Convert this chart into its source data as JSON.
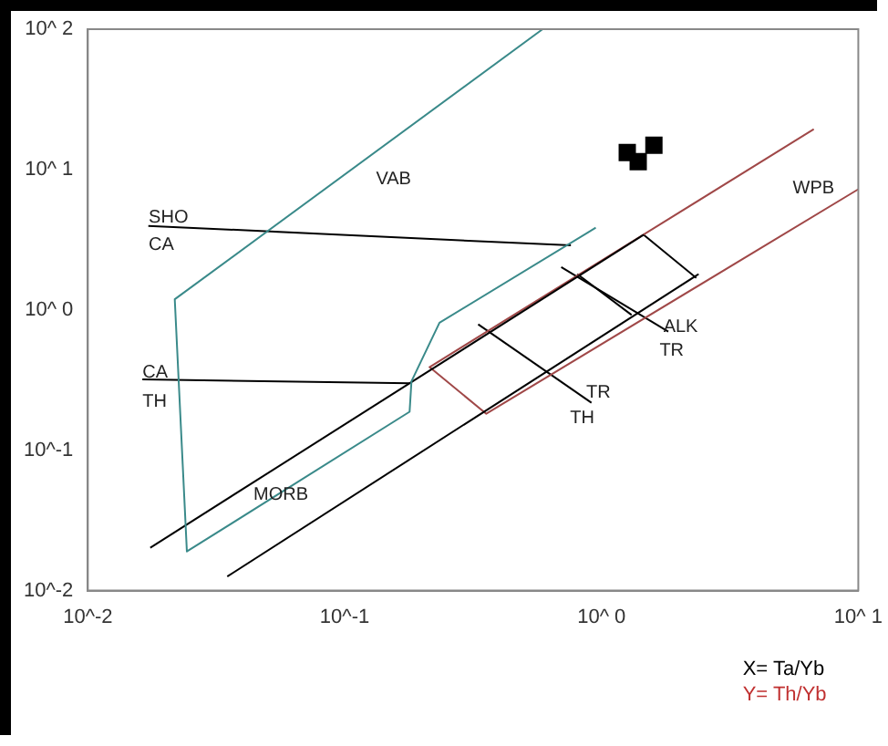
{
  "chart_data": {
    "type": "line",
    "log": "xy",
    "grid": false,
    "legend": false,
    "xlim": [
      0.01,
      10
    ],
    "ylim": [
      0.01,
      100
    ],
    "xticks": [
      {
        "value": 0.01,
        "label": "10^-2"
      },
      {
        "value": 0.1,
        "label": "10^-1"
      },
      {
        "value": 1,
        "label": "10^ 0"
      },
      {
        "value": 10,
        "label": "10^ 1"
      }
    ],
    "yticks": [
      {
        "value": 0.01,
        "label": "10^-2"
      },
      {
        "value": 0.1,
        "label": "10^-1"
      },
      {
        "value": 1,
        "label": "10^ 0"
      },
      {
        "value": 10,
        "label": "10^ 1"
      },
      {
        "value": 100,
        "label": "10^ 2"
      }
    ],
    "series": [
      {
        "color": "#3a8a8a",
        "x": [
          0.59,
          0.0218,
          0.0243,
          0.179,
          0.182,
          0.234,
          0.95
        ],
        "values": [
          100,
          1.19,
          0.019,
          0.188,
          0.31,
          0.81,
          3.85
        ]
      },
      {
        "color": "#000000",
        "x": [
          0.0172,
          0.76
        ],
        "values": [
          3.97,
          2.88
        ]
      },
      {
        "color": "#000000",
        "x": [
          0.0163,
          0.179
        ],
        "values": [
          0.32,
          0.3
        ]
      },
      {
        "color": "#000000",
        "x": [
          0.0175,
          1.46
        ],
        "values": [
          0.0202,
          3.43
        ]
      },
      {
        "color": "#000000",
        "x": [
          0.0349,
          2.39
        ],
        "values": [
          0.0126,
          1.8
        ]
      },
      {
        "color": "#a04848",
        "x": [
          6.71,
          0.214,
          0.356,
          10
        ],
        "values": [
          19.4,
          0.391,
          0.182,
          7.24
        ]
      },
      {
        "color": "#000000",
        "x": [
          1.46,
          2.34
        ],
        "values": [
          3.43,
          1.69
        ]
      },
      {
        "color": "#000000",
        "x": [
          0.805,
          1.31
        ],
        "values": [
          1.8,
          0.92
        ]
      },
      {
        "color": "#000000",
        "x": [
          0.697,
          1.82
        ],
        "values": [
          2.02,
          0.7
        ]
      },
      {
        "color": "#000000",
        "x": [
          0.331,
          0.914
        ],
        "values": [
          0.79,
          0.218
        ]
      },
      {
        "type": "scatter",
        "color": "#000000",
        "marker": "square",
        "x": [
          1.26,
          1.6,
          1.39
        ],
        "values": [
          13.2,
          14.9,
          11.4
        ]
      }
    ],
    "annotations": [
      "VAB",
      "SHO",
      "CA",
      "CA",
      "TH",
      "MORB",
      "WPB",
      "ALK",
      "TR",
      "TR",
      "TH",
      "X= Ta/Yb",
      "Y= Th/Yb"
    ]
  }
}
